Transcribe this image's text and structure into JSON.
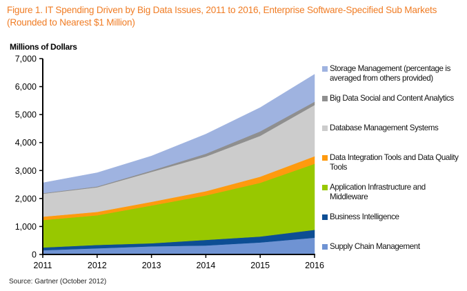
{
  "chart_data": {
    "type": "area",
    "stacked": true,
    "title": "Figure 1. IT Spending Driven by Big Data Issues, 2011 to 2016, Enterprise Software-Specified Sub Markets (Rounded to Nearest $1 Million)",
    "ylabel": "Millions of Dollars",
    "xlabel": "",
    "source": "Source: Gartner (October 2012)",
    "x": [
      "2011",
      "2012",
      "2013",
      "2014",
      "2015",
      "2016"
    ],
    "ylim": [
      0,
      7000
    ],
    "yticks": [
      0,
      1000,
      2000,
      3000,
      4000,
      5000,
      6000,
      7000
    ],
    "ytick_labels": [
      "0",
      "1,000",
      "2,000",
      "3,000",
      "4,000",
      "5,000",
      "6,000",
      "7,000"
    ],
    "grid": false,
    "legend_position": "right",
    "series": [
      {
        "name": "Supply Chain Management",
        "color": "#6f93d3",
        "values": [
          150,
          220,
          290,
          320,
          430,
          600
        ]
      },
      {
        "name": "Business Intelligence",
        "color": "#0d4e94",
        "values": [
          100,
          120,
          110,
          200,
          210,
          280
        ]
      },
      {
        "name": "Application Infrastructure and Middleware",
        "color": "#98c800",
        "values": [
          980,
          1060,
          1350,
          1590,
          1920,
          2360
        ]
      },
      {
        "name": "Data Integration Tools and Data Quality Tools",
        "color": "#ff9a0e",
        "values": [
          120,
          120,
          130,
          150,
          220,
          270
        ]
      },
      {
        "name": "Database Management Systems",
        "color": "#cccccc",
        "values": [
          820,
          880,
          1070,
          1240,
          1460,
          1830
        ]
      },
      {
        "name": "Big Data Social and Content Analytics",
        "color": "#8f8f8f",
        "values": [
          20,
          30,
          50,
          100,
          160,
          120
        ]
      },
      {
        "name": "Storage Management (percentage is averaged from others provided)",
        "color": "#9fb3e0",
        "values": [
          370,
          490,
          520,
          700,
          850,
          980
        ]
      }
    ]
  },
  "legend": [
    {
      "label": "Storage Management (percentage is averaged from others provided)",
      "color": "#9fb3e0"
    },
    {
      "label": "Big Data Social and Content Analytics",
      "color": "#8f8f8f"
    },
    {
      "label": "Database Management Systems",
      "color": "#cccccc"
    },
    {
      "label": "Data Integration Tools and Data Quality Tools",
      "color": "#ff9a0e"
    },
    {
      "label": "Application Infrastructure and Middleware",
      "color": "#98c800"
    },
    {
      "label": "Business Intelligence",
      "color": "#0d4e94"
    },
    {
      "label": "Supply Chain Management",
      "color": "#6f93d3"
    }
  ]
}
